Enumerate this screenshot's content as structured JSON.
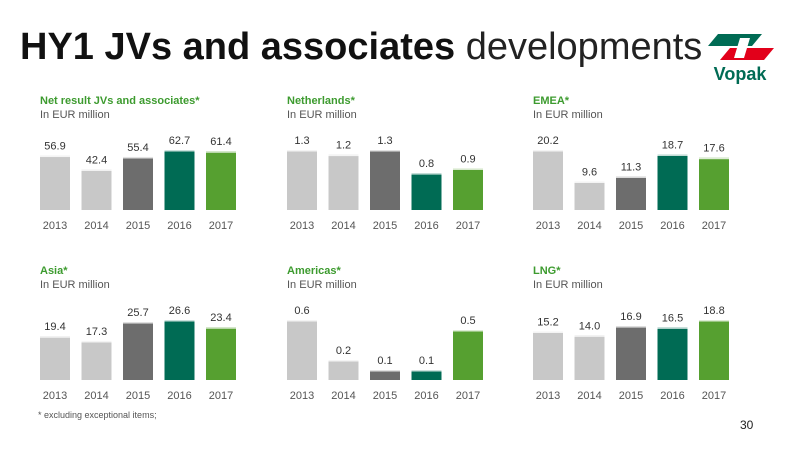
{
  "title": {
    "bold": "HY1 JVs and associates",
    "light": "developments"
  },
  "logo": {
    "text": "Vopak",
    "colors": {
      "red": "#e2001a",
      "green": "#006b54"
    }
  },
  "footnote": "* excluding exceptional items;",
  "page_number": "30",
  "colors": [
    "#c8c8c8",
    "#c8c8c8",
    "#6d6d6d",
    "#006b54",
    "#56a030"
  ],
  "chart_data": [
    {
      "type": "bar",
      "title": "Net result JVs and associates*",
      "subtitle": "In EUR million",
      "categories": [
        "2013",
        "2014",
        "2015",
        "2016",
        "2017"
      ],
      "values": [
        56.9,
        42.4,
        55.4,
        62.7,
        61.4
      ],
      "labels": [
        "56.9",
        "42.4",
        "55.4",
        "62.7",
        "61.4"
      ]
    },
    {
      "type": "bar",
      "title": "Netherlands*",
      "subtitle": "In EUR million",
      "categories": [
        "2013",
        "2014",
        "2015",
        "2016",
        "2017"
      ],
      "values": [
        1.3,
        1.2,
        1.3,
        0.8,
        0.9
      ],
      "labels": [
        "1.3",
        "1.2",
        "1.3",
        "0.8",
        "0.9"
      ]
    },
    {
      "type": "bar",
      "title": "EMEA*",
      "subtitle": "In EUR million",
      "categories": [
        "2013",
        "2014",
        "2015",
        "2016",
        "2017"
      ],
      "values": [
        20.2,
        9.6,
        11.3,
        18.7,
        17.6
      ],
      "labels": [
        "20.2",
        "9.6",
        "11.3",
        "18.7",
        "17.6"
      ]
    },
    {
      "type": "bar",
      "title": "Asia*",
      "subtitle": "In EUR million",
      "categories": [
        "2013",
        "2014",
        "2015",
        "2016",
        "2017"
      ],
      "values": [
        19.4,
        17.3,
        25.7,
        26.6,
        23.4
      ],
      "labels": [
        "19.4",
        "17.3",
        "25.7",
        "26.6",
        "23.4"
      ]
    },
    {
      "type": "bar",
      "title": "Americas*",
      "subtitle": "In EUR million",
      "categories": [
        "2013",
        "2014",
        "2015",
        "2016",
        "2017"
      ],
      "values": [
        0.6,
        0.2,
        0.1,
        0.1,
        0.5
      ],
      "labels": [
        "0.6",
        "0.2",
        "0.1",
        "0.1",
        "0.5"
      ]
    },
    {
      "type": "bar",
      "title": "LNG*",
      "subtitle": "In EUR million",
      "categories": [
        "2013",
        "2014",
        "2015",
        "2016",
        "2017"
      ],
      "values": [
        15.2,
        14.0,
        16.9,
        16.5,
        18.8
      ],
      "labels": [
        "15.2",
        "14.0",
        "16.9",
        "16.5",
        "18.8"
      ]
    }
  ]
}
